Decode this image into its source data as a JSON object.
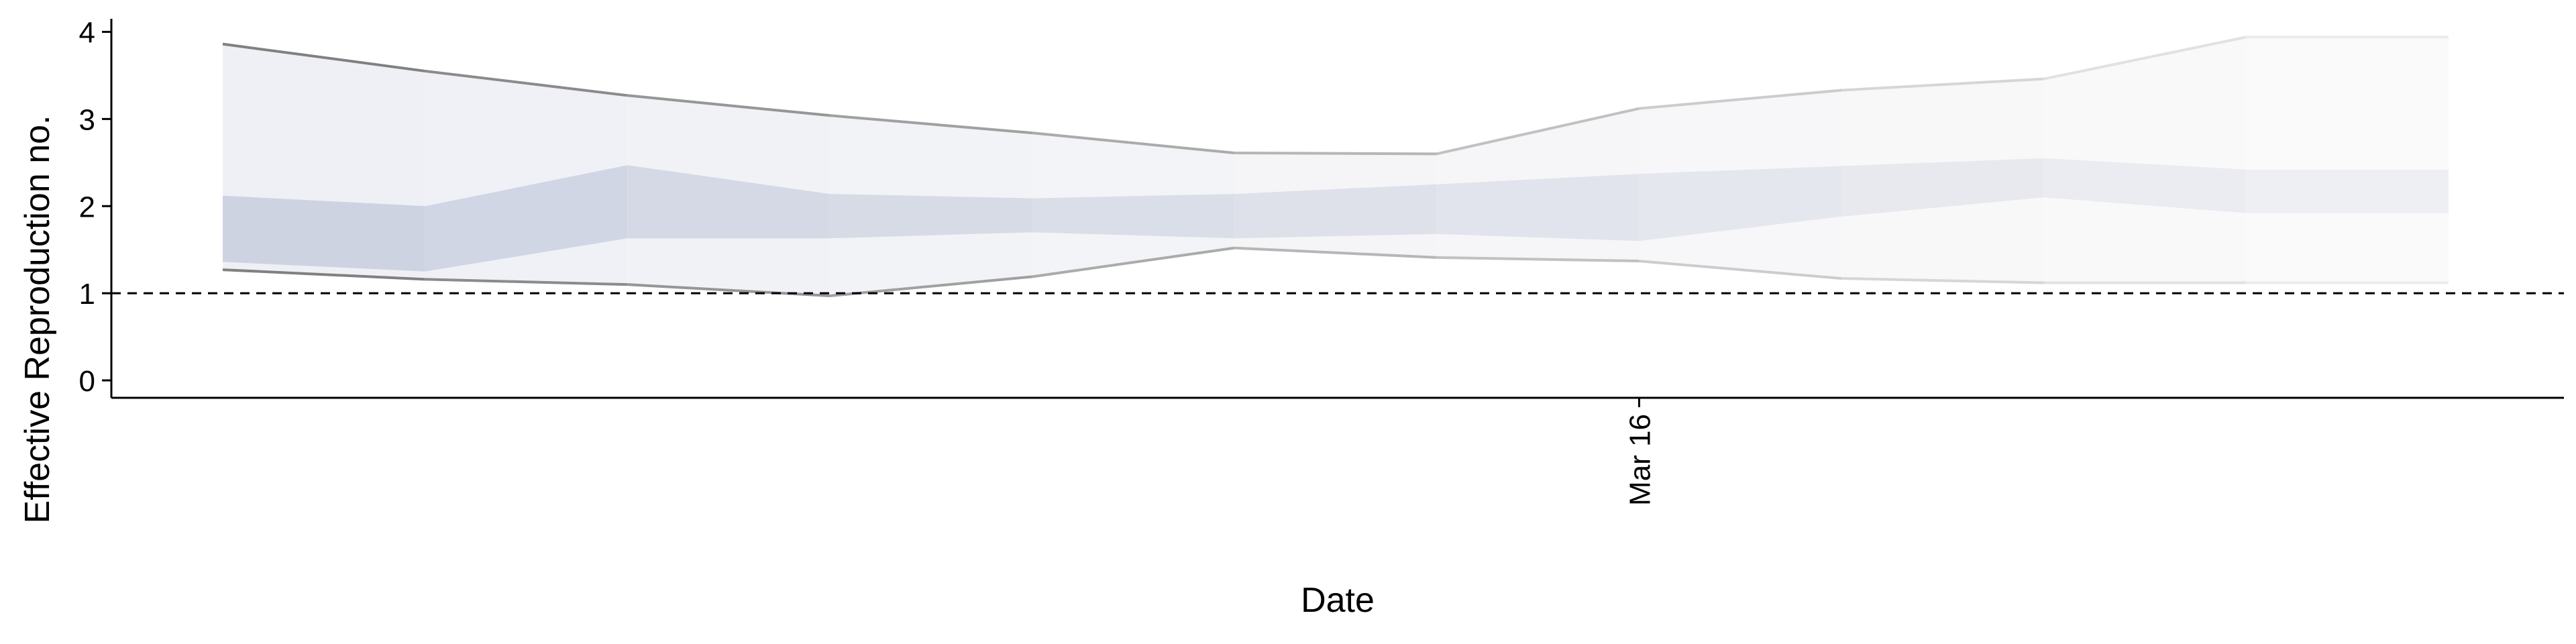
{
  "chart_data": {
    "type": "area",
    "title": "",
    "xlabel": "Date",
    "ylabel": "Effective Reproduction no.",
    "ylim": [
      -0.2,
      4.15
    ],
    "yticks": [
      0,
      1,
      2,
      3,
      4
    ],
    "xticks": [
      {
        "date": "2020-03-16",
        "label": "Mar 16"
      }
    ],
    "reference_line": {
      "y": 1,
      "style": "dashed"
    },
    "grid": false,
    "legend": "none",
    "x": [
      "2020-03-09",
      "2020-03-10",
      "2020-03-11",
      "2020-03-12",
      "2020-03-13",
      "2020-03-14",
      "2020-03-15",
      "2020-03-16",
      "2020-03-17",
      "2020-03-18",
      "2020-03-19",
      "2020-03-20"
    ],
    "upper_90": [
      3.86,
      3.55,
      3.27,
      3.04,
      2.84,
      2.61,
      2.6,
      3.12,
      3.33,
      3.46,
      3.94,
      3.94
    ],
    "upper_50": [
      2.12,
      2.0,
      2.47,
      2.14,
      2.09,
      2.14,
      2.25,
      2.37,
      2.46,
      2.55,
      2.42,
      2.42
    ],
    "lower_50": [
      1.36,
      1.25,
      1.63,
      1.63,
      1.7,
      1.63,
      1.68,
      1.6,
      1.88,
      2.1,
      1.92,
      1.92
    ],
    "lower_90": [
      1.27,
      1.16,
      1.1,
      0.97,
      1.19,
      1.52,
      1.41,
      1.37,
      1.17,
      1.12,
      1.12,
      1.12
    ],
    "band_colors": {
      "outer_start": "#eff0f5",
      "outer_end": "#fafafa",
      "inner_start": "#cdd3e1",
      "inner_end": "#eeeff3",
      "bound_start": "#808080",
      "bound_end": "#ececec"
    }
  }
}
